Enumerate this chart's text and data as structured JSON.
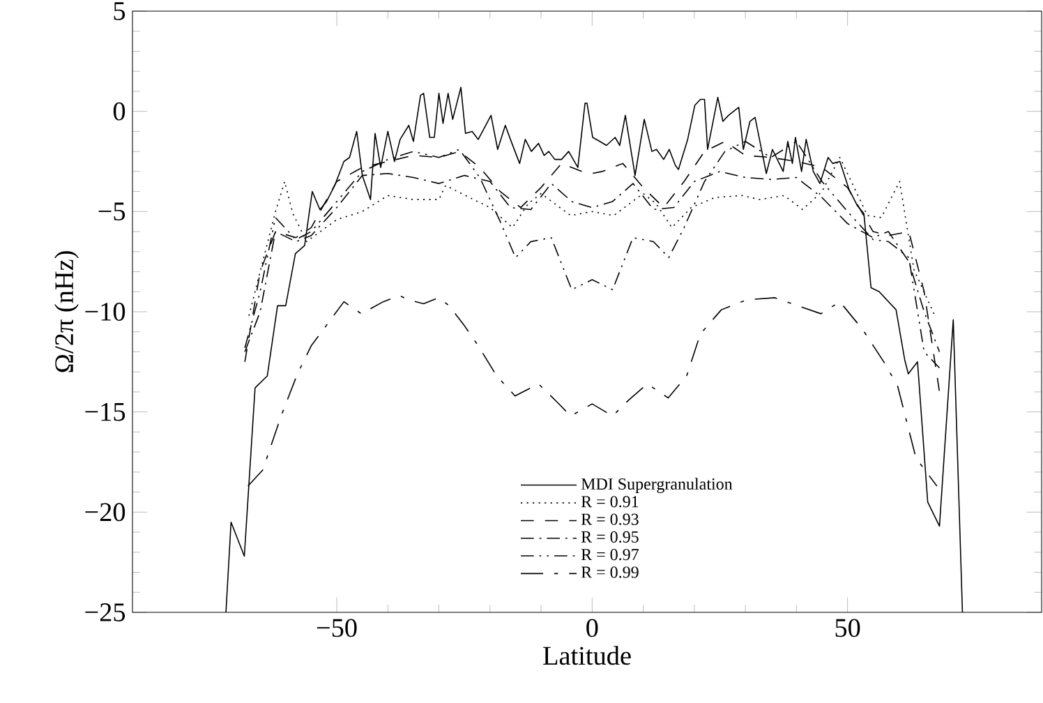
{
  "chart_data": {
    "type": "line",
    "xlabel": "Latitude",
    "ylabel": "Ω/2π (nHz)",
    "xlim": [
      -90,
      88
    ],
    "ylim": [
      -25,
      5
    ],
    "xticks": [
      {
        "value": -50,
        "label": "−50"
      },
      0,
      50
    ],
    "yticks": [
      {
        "value": -25,
        "label": "−25"
      },
      {
        "value": -20,
        "label": "−20"
      },
      {
        "value": -15,
        "label": "−15"
      },
      {
        "value": -10,
        "label": "−10"
      },
      {
        "value": -5,
        "label": "−5"
      },
      0,
      5
    ],
    "legend": "bottom",
    "grid": false,
    "marker": "none",
    "series": [
      {
        "name": "MDI Supergranulation",
        "color": "#000000",
        "line_style": "solid",
        "x": [
          -71.7,
          -70.7,
          -68.1,
          -66,
          -63.6,
          -61.6,
          -60,
          -58.1,
          -56.3,
          -54.8,
          -53.3,
          -52,
          -50.4,
          -48.6,
          -47.5,
          -46.1,
          -45,
          -43.4,
          -42.5,
          -41.4,
          -40,
          -38.7,
          -37.6,
          -35.9,
          -35,
          -33.6,
          -33,
          -31.8,
          -30.9,
          -30,
          -29.2,
          -28.2,
          -27.3,
          -25.7,
          -24.8,
          -23.5,
          -22.3,
          -19.8,
          -18.5,
          -17,
          -16,
          -14.2,
          -13.1,
          -11.9,
          -10.5,
          -9.4,
          -8.5,
          -7.3,
          -6,
          -4.6,
          -2.8,
          -1.4,
          -1,
          0.1,
          1.5,
          2.8,
          4.5,
          5.4,
          6.5,
          8.4,
          10.2,
          11.7,
          12.6,
          14,
          15.1,
          16.3,
          16.9,
          18.7,
          20.1,
          21.2,
          22,
          22.6,
          24.6,
          25.6,
          26.7,
          28.7,
          29.6,
          30.9,
          31.9,
          34.1,
          35.3,
          37.4,
          38.3,
          39.2,
          39.8,
          41,
          41.9,
          43.3,
          44.6,
          46.2,
          47.1,
          48.5,
          50.3,
          51.9,
          53.2,
          54.6,
          56.2,
          59.5,
          61.2,
          61.9,
          63.7,
          65.7,
          68,
          70.7,
          72.5
        ],
        "values": [
          -25,
          -20.5,
          -22.2,
          -13.8,
          -13.2,
          -9.7,
          -9.7,
          -7.1,
          -6.7,
          -4,
          -4.9,
          -4.5,
          -3.7,
          -2.5,
          -2.3,
          -1,
          -3.2,
          -4.4,
          -1.1,
          -2.8,
          -1,
          -2.5,
          -1.4,
          -0.7,
          -1.5,
          0.8,
          0.9,
          -1.3,
          -1.3,
          0.9,
          -0.6,
          0.9,
          -0.4,
          1.2,
          -1.1,
          -1,
          -1.4,
          -0.2,
          -1.9,
          -0.7,
          -1.4,
          -2.6,
          -1.4,
          -2,
          -1.6,
          -2.2,
          -2,
          -2.4,
          -2.4,
          -2,
          -2.8,
          0.4,
          0.4,
          -1.3,
          -1.5,
          -1.7,
          -1.3,
          -1.7,
          -0.2,
          -3.2,
          -0.4,
          -2,
          -1.9,
          -2.4,
          -1.9,
          -2.7,
          -2.9,
          -1.4,
          0.3,
          0.6,
          0.6,
          -1.9,
          0.7,
          -0.5,
          -0.2,
          0.2,
          -1.9,
          -0.5,
          -0.3,
          -3.1,
          -1.9,
          -3,
          -1.5,
          -2.6,
          -1.3,
          -3,
          -1.4,
          -3,
          -3.6,
          -2.3,
          -2.6,
          -2.5,
          -3.9,
          -4.7,
          -5.1,
          -8.8,
          -9,
          -9.9,
          -12.4,
          -13.1,
          -12.5,
          -19.5,
          -20.7,
          -10.4,
          -25
        ]
      },
      {
        "name": "R = 0.91",
        "color": "#000000",
        "line_style": "dotted",
        "x": [
          -67.2,
          -62,
          -60.2,
          -58.6,
          -55.9,
          -50,
          -45,
          -40,
          -35,
          -30,
          -28.7,
          -24,
          -20,
          -15.6,
          -12.5,
          -10,
          -4.2,
          0,
          4.2,
          10,
          12.5,
          15.6,
          19.4,
          24,
          29.4,
          32.8,
          37.6,
          41.2,
          45,
          48.5,
          53.9,
          56.6,
          60.2,
          63,
          67.1
        ],
        "values": [
          -10.2,
          -5,
          -3.5,
          -5.1,
          -6.5,
          -5.4,
          -5,
          -4.2,
          -4.4,
          -4.4,
          -3.7,
          -4.3,
          -4.8,
          -5.8,
          -4.6,
          -4.1,
          -5.2,
          -5,
          -5.2,
          -4.1,
          -4.6,
          -5.8,
          -4.8,
          -4.3,
          -4.2,
          -4.4,
          -4.2,
          -4.9,
          -4,
          -2.3,
          -5.2,
          -5.3,
          -3.5,
          -7.9,
          -10.2
        ]
      },
      {
        "name": "R = 0.93",
        "color": "#000000",
        "line_style": "dashed",
        "x": [
          -68,
          -65,
          -62,
          -58,
          -55,
          -50,
          -45,
          -40,
          -35,
          -30,
          -26,
          -22,
          -18,
          -14,
          -10,
          -6,
          -2,
          0,
          2,
          6,
          10,
          14,
          18,
          22,
          26,
          30,
          35,
          40,
          45,
          50,
          55,
          58,
          62,
          65,
          68
        ],
        "values": [
          -12.5,
          -8,
          -6,
          -6.3,
          -5.8,
          -3.5,
          -2.8,
          -2.5,
          -2.2,
          -2.3,
          -2,
          -2.8,
          -4,
          -4.8,
          -3.8,
          -2.6,
          -3,
          -3.1,
          -3,
          -2.6,
          -3.8,
          -4.8,
          -3.5,
          -2,
          -1.5,
          -2.2,
          -2.3,
          -2.5,
          -2.8,
          -3.8,
          -6,
          -6.2,
          -6,
          -9,
          -14
        ]
      },
      {
        "name": "R = 0.95",
        "color": "#000000",
        "line_style": "dashdot",
        "x": [
          -68,
          -65,
          -62,
          -58,
          -55,
          -50,
          -45,
          -40,
          -35,
          -30,
          -25,
          -20,
          -16,
          -12,
          -8,
          -4,
          0,
          4,
          8,
          12,
          16,
          20,
          25,
          30,
          35,
          40,
          45,
          50,
          55,
          58,
          62,
          65,
          68
        ],
        "values": [
          -12,
          -10,
          -6,
          -6.5,
          -6.2,
          -4.8,
          -3.2,
          -3.1,
          -3.3,
          -3.6,
          -3.2,
          -3.5,
          -4.8,
          -4.9,
          -3.6,
          -4.5,
          -4.8,
          -4.5,
          -3.6,
          -4.9,
          -4.8,
          -3.5,
          -3,
          -3.3,
          -3.4,
          -3.3,
          -4.3,
          -5.6,
          -6.3,
          -6,
          -7.5,
          -10,
          -12
        ]
      },
      {
        "name": "R = 0.97",
        "color": "#000000",
        "line_style": "dashdotdot",
        "x": [
          -68,
          -65,
          -62,
          -58,
          -55,
          -50,
          -45,
          -40,
          -35,
          -30,
          -26,
          -22,
          -18,
          -15,
          -12,
          -8,
          -4,
          0,
          4,
          8,
          12,
          15,
          18,
          22,
          26,
          30,
          35,
          40,
          45,
          50,
          55,
          58,
          62,
          65,
          68
        ],
        "values": [
          -11.8,
          -9,
          -5.3,
          -6.4,
          -6,
          -4.5,
          -3,
          -2.4,
          -2,
          -2.3,
          -1.9,
          -3.3,
          -5.5,
          -7.3,
          -6.5,
          -6.3,
          -8.9,
          -8.4,
          -8.9,
          -6.3,
          -6.5,
          -7.3,
          -5.8,
          -3.5,
          -2,
          -1.5,
          -2.3,
          -1.5,
          -3.5,
          -5,
          -6.4,
          -6.5,
          -7.3,
          -12,
          -12.8
        ]
      },
      {
        "name": "R = 0.99",
        "color": "#000000",
        "line_style": "longdash",
        "x": [
          -67.4,
          -64.5,
          -60.9,
          -57.7,
          -55,
          -48.6,
          -45.2,
          -40.9,
          -37.7,
          -36,
          -33,
          -30,
          -28,
          -25,
          -22.3,
          -18.7,
          -15.1,
          -10.5,
          -6.9,
          -4.2,
          0,
          4,
          7.2,
          10.8,
          14.9,
          16.2,
          18.5,
          21.2,
          25.3,
          30.3,
          35.8,
          40.3,
          44.8,
          48.5,
          53,
          57.1,
          59.8,
          63.4,
          67.5
        ],
        "values": [
          -18.7,
          -17.9,
          -15.2,
          -13.1,
          -11.7,
          -9.5,
          -10.1,
          -9.5,
          -9.2,
          -9.4,
          -9.6,
          -9.3,
          -9.7,
          -10.7,
          -11.7,
          -13.2,
          -14.2,
          -13.6,
          -14.5,
          -15.2,
          -14.6,
          -15.2,
          -14.4,
          -13.6,
          -14.3,
          -13.9,
          -13.2,
          -11.1,
          -9.9,
          -9.4,
          -9.3,
          -9.7,
          -10.1,
          -9.5,
          -10.9,
          -12.5,
          -13.7,
          -17.3,
          -18.7
        ]
      }
    ]
  }
}
